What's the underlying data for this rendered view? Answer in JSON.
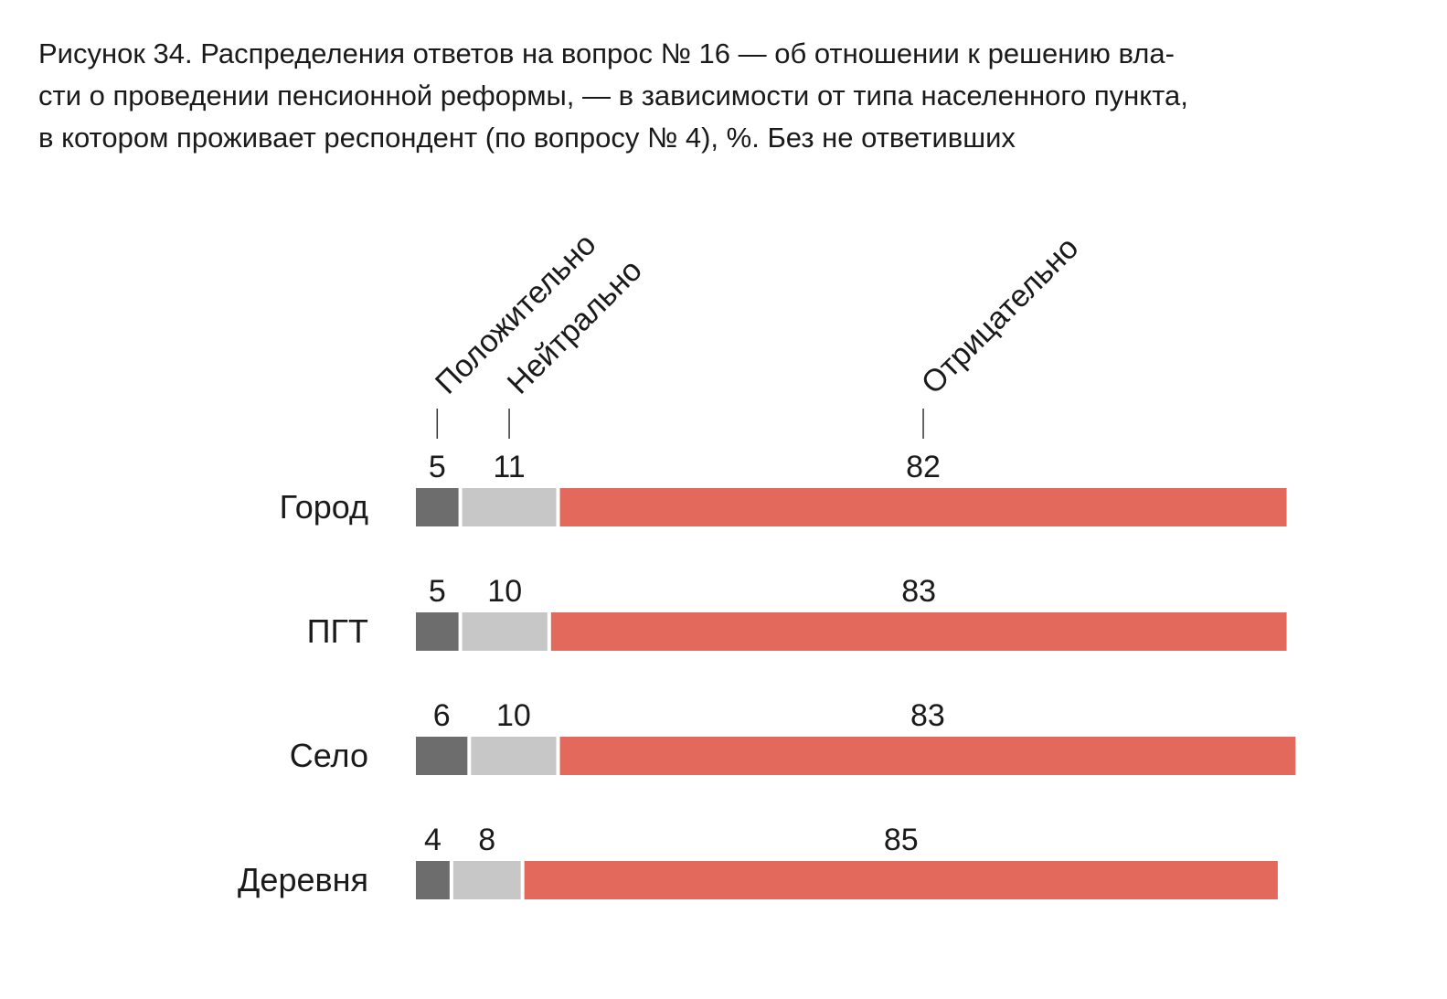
{
  "title_lines": [
    "Рисунок 34. Распределения ответов на вопрос № 16 — об отношении к решению вла-",
    "сти о проведении пенсионной реформы, — в зависимости от типа населенного пункта,",
    "в котором проживает респондент (по вопросу № 4), %. Без не ответивших"
  ],
  "chart_data": {
    "type": "bar",
    "stacked": true,
    "orientation": "horizontal",
    "title": "Рисунок 34. Распределения ответов на вопрос № 16 — об отношении к решению власти о проведении пенсионной реформы, — в зависимости от типа населенного пункта, в котором проживает респондент (по вопросу № 4), %. Без не ответивших",
    "categories": [
      "Город",
      "ПГТ",
      "Село",
      "Деревня"
    ],
    "series": [
      {
        "name": "Положительно",
        "values": [
          5,
          5,
          6,
          4
        ],
        "color": "#6d6d6d"
      },
      {
        "name": "Нейтрально",
        "values": [
          11,
          10,
          10,
          8
        ],
        "color": "#c6c7c6"
      },
      {
        "name": "Отрицательно",
        "values": [
          82,
          83,
          83,
          85
        ],
        "color": "#e3695c"
      }
    ],
    "legend": "rotated labels above first bar"
  }
}
